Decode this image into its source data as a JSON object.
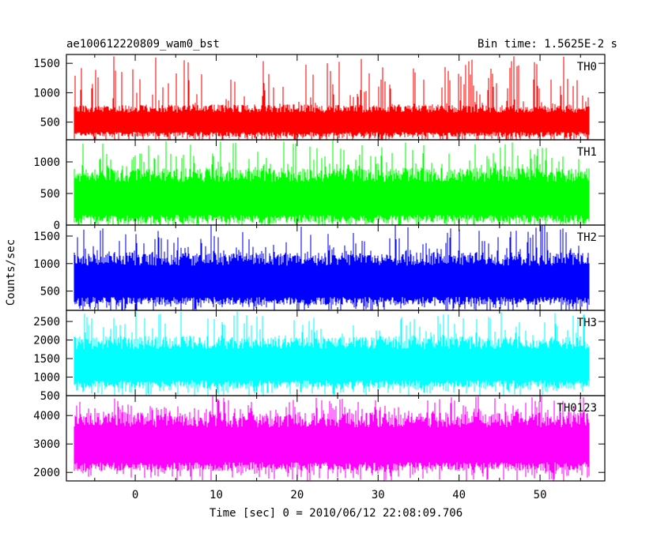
{
  "header": {
    "left_title": "ae100612220809_wam0_bst",
    "right_title": "Bin time: 1.5625E-2 s"
  },
  "axes": {
    "ylabel": "Counts/sec",
    "xlabel": "Time [sec] 0 = 2010/06/12 22:08:09.706",
    "xlim": [
      -8.5,
      58
    ],
    "xticks": [
      0,
      10,
      20,
      30,
      40,
      50
    ]
  },
  "chart_data": {
    "type": "line",
    "shared_x": {
      "start": -7.5,
      "end": 56.0,
      "bin_time": 0.015625
    },
    "series": [
      {
        "name": "TH0",
        "color": "#ff0000",
        "ylim": [
          200,
          1650
        ],
        "yticks": [
          500,
          1000,
          1500
        ],
        "typical": [
          250,
          800
        ],
        "peak_max": 1650,
        "min": 150
      },
      {
        "name": "TH1",
        "color": "#00ff00",
        "ylim": [
          0,
          1350
        ],
        "yticks": [
          0,
          500,
          1000
        ],
        "typical": [
          30,
          900
        ],
        "peak_max": 1350,
        "min": 0
      },
      {
        "name": "TH2",
        "color": "#0000ff",
        "ylim": [
          150,
          1700
        ],
        "yticks": [
          500,
          1000,
          1500
        ],
        "typical": [
          250,
          1200
        ],
        "peak_max": 1700,
        "min": 100
      },
      {
        "name": "TH3",
        "color": "#00ffff",
        "ylim": [
          500,
          2800
        ],
        "yticks": [
          500,
          1000,
          1500,
          2000,
          2500
        ],
        "typical": [
          700,
          2100
        ],
        "peak_max": 2800,
        "min": 500
      },
      {
        "name": "TH0123",
        "color": "#ff00ff",
        "ylim": [
          1700,
          4700
        ],
        "yticks": [
          2000,
          3000,
          4000
        ],
        "typical": [
          2050,
          4100
        ],
        "peak_max": 4700,
        "min": 1700
      }
    ]
  }
}
